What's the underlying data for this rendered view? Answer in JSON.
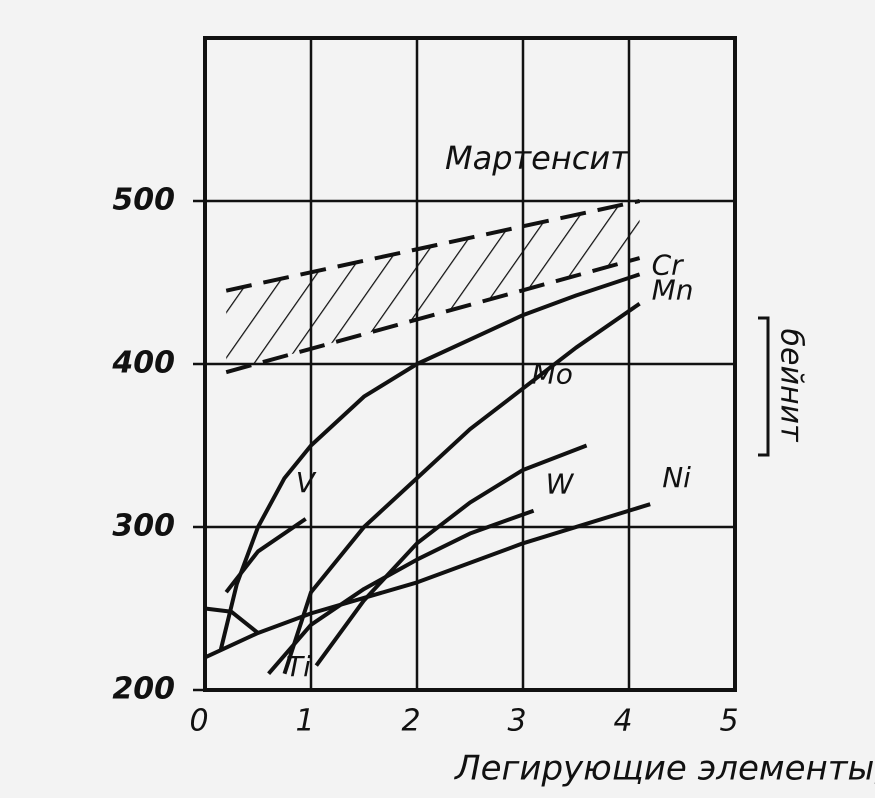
{
  "chart_data": {
    "type": "line",
    "xlabel": "Легирующие элементы, %",
    "xlim": [
      0,
      5
    ],
    "xticks": [
      0,
      1,
      2,
      3,
      4,
      5
    ],
    "ylim": [
      200,
      600
    ],
    "yticks": [
      200,
      300,
      400,
      500
    ],
    "grid": true,
    "color": "#111111",
    "series": [
      {
        "name": "Cr",
        "x": [
          0.15,
          0.3,
          0.5,
          0.75,
          1,
          1.5,
          2,
          2.5,
          3,
          3.5,
          4.1
        ],
        "values": [
          225,
          265,
          300,
          330,
          350,
          380,
          400,
          415,
          430,
          442,
          455
        ]
      },
      {
        "name": "Mn",
        "x": [
          0.75,
          1,
          1.5,
          2,
          2.5,
          3,
          3.5,
          4.1
        ],
        "values": [
          210,
          260,
          300,
          330,
          360,
          385,
          410,
          437
        ]
      },
      {
        "name": "Mo",
        "x": [
          1.05,
          1.5,
          2,
          2.5,
          3,
          3.6
        ],
        "values": [
          215,
          255,
          290,
          315,
          335,
          350
        ]
      },
      {
        "name": "W",
        "x": [
          0.6,
          1,
          1.5,
          2,
          2.5,
          3.1
        ],
        "values": [
          210,
          240,
          262,
          280,
          296,
          310
        ]
      },
      {
        "name": "Ni",
        "x": [
          0,
          0.5,
          1,
          2,
          3,
          4.2
        ],
        "values": [
          220,
          235,
          247,
          266,
          290,
          314
        ]
      },
      {
        "name": "V",
        "x": [
          0.2,
          0.5,
          0.95
        ],
        "values": [
          260,
          285,
          305
        ]
      },
      {
        "name": "Ti",
        "x": [
          0,
          0.25,
          0.5
        ],
        "values": [
          250,
          248,
          235
        ]
      }
    ],
    "band": {
      "x": [
        0.2,
        4.1
      ],
      "lower": [
        395,
        465
      ],
      "upper": [
        445,
        500
      ]
    },
    "annotations": [
      "Мартенсит",
      "бейнит"
    ]
  }
}
